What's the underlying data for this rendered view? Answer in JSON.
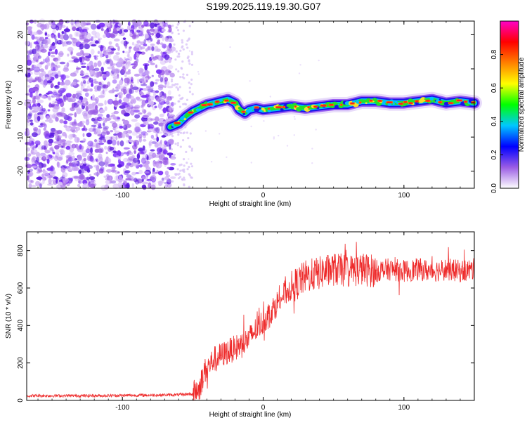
{
  "title": "S199.2025.119.19.30.G07",
  "spectrogram": {
    "type": "heatmap",
    "xlabel": "Height of straight line (km)",
    "ylabel": "Frequency (Hz)",
    "xlim": [
      -168,
      150
    ],
    "ylim": [
      -25,
      24
    ],
    "xticks": [
      -100,
      0,
      100
    ],
    "yticks": [
      -20,
      -10,
      0,
      10,
      20
    ],
    "noise_region_x": [
      -168,
      -55
    ],
    "ridge": [
      {
        "x": -66,
        "y": -7
      },
      {
        "x": -60,
        "y": -6
      },
      {
        "x": -55,
        "y": -4
      },
      {
        "x": -50,
        "y": -2.5
      },
      {
        "x": -45,
        "y": -1.5
      },
      {
        "x": -40,
        "y": -0.5
      },
      {
        "x": -35,
        "y": 0
      },
      {
        "x": -30,
        "y": 0.5
      },
      {
        "x": -25,
        "y": 1
      },
      {
        "x": -20,
        "y": 0
      },
      {
        "x": -17,
        "y": -2
      },
      {
        "x": -13,
        "y": -3
      },
      {
        "x": -10,
        "y": -2
      },
      {
        "x": -5,
        "y": -1.5
      },
      {
        "x": 0,
        "y": -2
      },
      {
        "x": 10,
        "y": -1.5
      },
      {
        "x": 20,
        "y": -1
      },
      {
        "x": 30,
        "y": -1.5
      },
      {
        "x": 40,
        "y": -1
      },
      {
        "x": 50,
        "y": -0.5
      },
      {
        "x": 60,
        "y": -0.5
      },
      {
        "x": 70,
        "y": 0.5
      },
      {
        "x": 80,
        "y": 0.5
      },
      {
        "x": 90,
        "y": 0
      },
      {
        "x": 100,
        "y": 0
      },
      {
        "x": 110,
        "y": 0.5
      },
      {
        "x": 120,
        "y": 1
      },
      {
        "x": 130,
        "y": 0
      },
      {
        "x": 140,
        "y": 0.5
      },
      {
        "x": 150,
        "y": 0
      }
    ],
    "colorbar": {
      "label": "Normalized spectral amplitude",
      "range": [
        0,
        1
      ],
      "ticks": [
        "0.0",
        "0.2",
        "0.4",
        "0.6",
        "0.8"
      ],
      "colors": [
        "#ffffff",
        "#9b5de5",
        "#0000ff",
        "#00c8ff",
        "#00ff00",
        "#ffff00",
        "#ff8000",
        "#ff0000",
        "#ff00c8"
      ]
    }
  },
  "snr_plot": {
    "type": "line",
    "xlabel": "Height of straight line (km)",
    "ylabel": "SNR (10 * v/v)",
    "xlim": [
      -168,
      150
    ],
    "ylim": [
      0,
      900
    ],
    "xticks": [
      -100,
      0,
      100
    ],
    "yticks": [
      0,
      200,
      400,
      600,
      800
    ],
    "color": "#ee2b2b",
    "x": [
      -168,
      -120,
      -80,
      -60,
      -50,
      -45,
      -42,
      -35,
      -25,
      -15,
      -10,
      -5,
      0,
      5,
      10,
      15,
      20,
      25,
      30,
      40,
      50,
      60,
      70,
      80,
      90,
      100,
      110,
      120,
      130,
      140,
      150
    ],
    "y": [
      25,
      25,
      28,
      30,
      35,
      70,
      150,
      220,
      260,
      300,
      330,
      380,
      420,
      470,
      520,
      570,
      600,
      630,
      660,
      680,
      700,
      690,
      700,
      690,
      700,
      690,
      700,
      690,
      700,
      690,
      700
    ]
  }
}
